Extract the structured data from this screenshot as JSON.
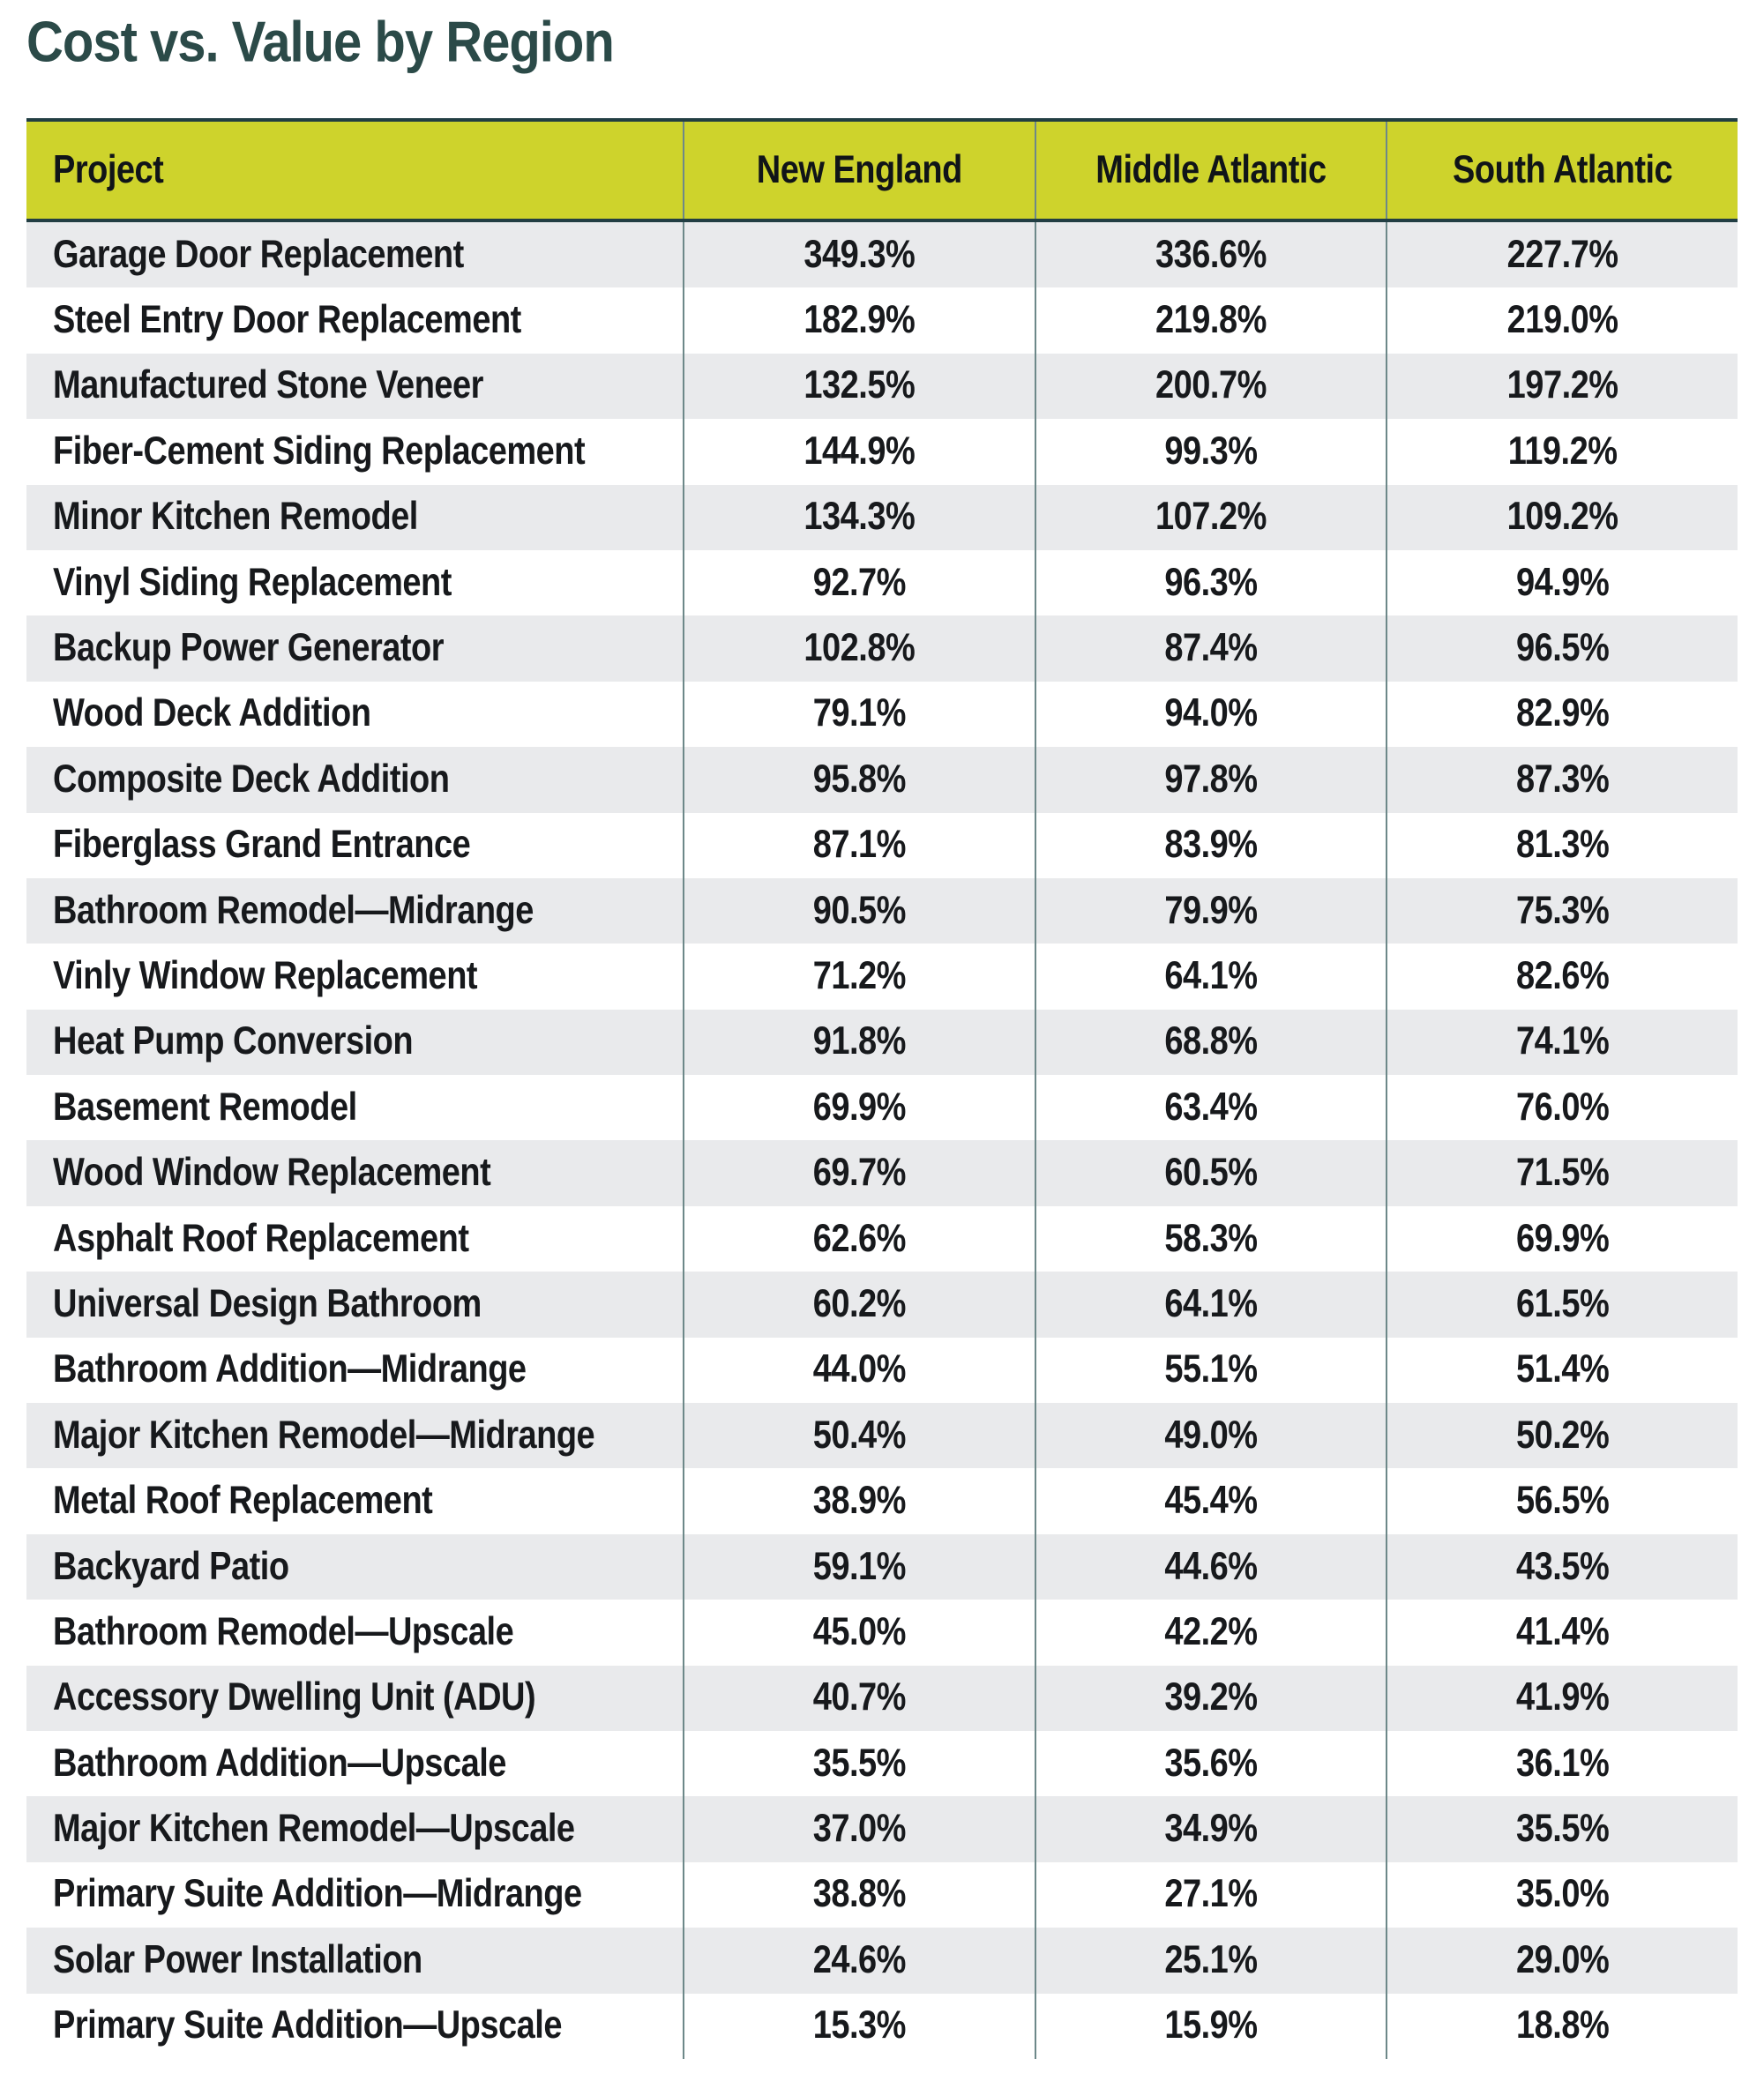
{
  "title": "Cost vs. Value by Region",
  "colors": {
    "title_text": "#2b4a48",
    "header_background": "#ced32c",
    "header_text": "#101418",
    "row_stripe": "#e9eaec",
    "row_white": "#ffffff",
    "column_divider": "#6d8889",
    "dark_border": "#223e43",
    "cell_text": "#17191c"
  },
  "chart_data": {
    "type": "table",
    "title": "Cost vs. Value by Region",
    "columns": [
      "Project",
      "New England",
      "Middle Atlantic",
      "South Atlantic"
    ],
    "rows": [
      [
        "Garage Door Replacement",
        "349.3%",
        "336.6%",
        "227.7%"
      ],
      [
        "Steel Entry Door Replacement",
        "182.9%",
        "219.8%",
        "219.0%"
      ],
      [
        "Manufactured Stone Veneer",
        "132.5%",
        "200.7%",
        "197.2%"
      ],
      [
        "Fiber-Cement Siding Replacement",
        "144.9%",
        "99.3%",
        "119.2%"
      ],
      [
        "Minor Kitchen Remodel",
        "134.3%",
        "107.2%",
        "109.2%"
      ],
      [
        "Vinyl Siding Replacement",
        "92.7%",
        "96.3%",
        "94.9%"
      ],
      [
        "Backup Power Generator",
        "102.8%",
        "87.4%",
        "96.5%"
      ],
      [
        "Wood Deck Addition",
        "79.1%",
        "94.0%",
        "82.9%"
      ],
      [
        "Composite Deck Addition",
        "95.8%",
        "97.8%",
        "87.3%"
      ],
      [
        "Fiberglass Grand Entrance",
        "87.1%",
        "83.9%",
        "81.3%"
      ],
      [
        "Bathroom Remodel—Midrange",
        "90.5%",
        "79.9%",
        "75.3%"
      ],
      [
        "Vinly Window Replacement",
        "71.2%",
        "64.1%",
        "82.6%"
      ],
      [
        "Heat Pump Conversion",
        "91.8%",
        "68.8%",
        "74.1%"
      ],
      [
        "Basement Remodel",
        "69.9%",
        "63.4%",
        "76.0%"
      ],
      [
        "Wood Window Replacement",
        "69.7%",
        "60.5%",
        "71.5%"
      ],
      [
        "Asphalt Roof Replacement",
        "62.6%",
        "58.3%",
        "69.9%"
      ],
      [
        "Universal Design Bathroom",
        "60.2%",
        "64.1%",
        "61.5%"
      ],
      [
        "Bathroom Addition—Midrange",
        "44.0%",
        "55.1%",
        "51.4%"
      ],
      [
        "Major Kitchen Remodel—Midrange",
        "50.4%",
        "49.0%",
        "50.2%"
      ],
      [
        "Metal Roof Replacement",
        "38.9%",
        "45.4%",
        "56.5%"
      ],
      [
        "Backyard Patio",
        "59.1%",
        "44.6%",
        "43.5%"
      ],
      [
        "Bathroom Remodel—Upscale",
        "45.0%",
        "42.2%",
        "41.4%"
      ],
      [
        "Accessory Dwelling Unit (ADU)",
        "40.7%",
        "39.2%",
        "41.9%"
      ],
      [
        "Bathroom Addition—Upscale",
        "35.5%",
        "35.6%",
        "36.1%"
      ],
      [
        "Major Kitchen Remodel—Upscale",
        "37.0%",
        "34.9%",
        "35.5%"
      ],
      [
        "Primary Suite Addition—Midrange",
        "38.8%",
        "27.1%",
        "35.0%"
      ],
      [
        "Solar Power Installation",
        "24.6%",
        "25.1%",
        "29.0%"
      ],
      [
        "Primary Suite Addition—Upscale",
        "15.3%",
        "15.9%",
        "18.8%"
      ]
    ]
  }
}
